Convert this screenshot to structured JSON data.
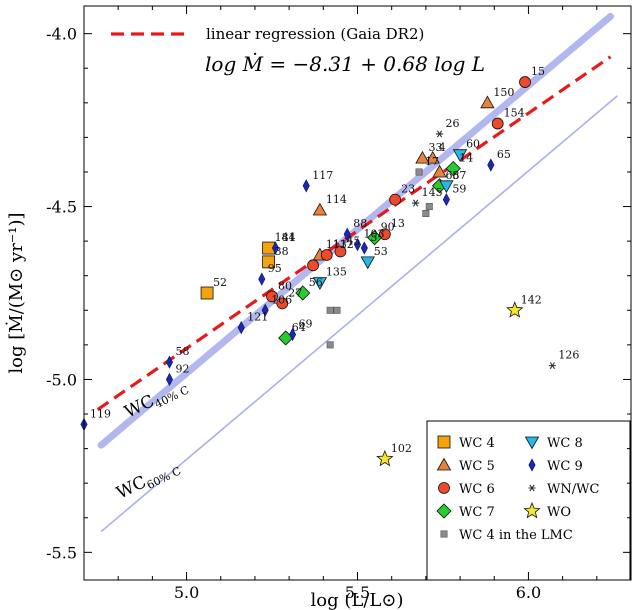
{
  "chart_data": {
    "type": "scatter",
    "xlabel": "log (L/L⊙)",
    "ylabel": "log [Ṁ/(M⊙ yr⁻¹)]",
    "xlim": [
      4.7,
      6.3
    ],
    "ylim": [
      -5.58,
      -3.92
    ],
    "xticks": [
      "5.0",
      "5.5",
      "6.0"
    ],
    "yticks": [
      "-4.0",
      "-4.5",
      "-5.0",
      "-5.5"
    ],
    "grid": false,
    "legend_position": "bottom-right",
    "regression": {
      "label": "linear regression (Gaia DR2)",
      "equation": "log Ṁ = −8.31 + 0.68 log L",
      "color": "#e8191b",
      "x": [
        4.74,
        6.24
      ],
      "y": [
        -5.087,
        -4.067
      ]
    },
    "wc40": {
      "label": "WC40% C",
      "color": "#aab0ee",
      "x": [
        4.75,
        6.24
      ],
      "y": [
        -5.19,
        -3.95
      ]
    },
    "wc60": {
      "label": "WC60% C",
      "color": "#aab0ee",
      "x": [
        4.75,
        6.26
      ],
      "y": [
        -5.44,
        -4.18
      ]
    },
    "legend": [
      {
        "label": "WC 4",
        "marker": "square",
        "color": "#f5a20f"
      },
      {
        "label": "WC 8",
        "marker": "tri-down",
        "color": "#25b8e8"
      },
      {
        "label": "WC 5",
        "marker": "tri-up",
        "color": "#e8823a"
      },
      {
        "label": "WC 9",
        "marker": "diamond-thin",
        "color": "#1a2aa8"
      },
      {
        "label": "WC 6",
        "marker": "circle",
        "color": "#ec4a2a"
      },
      {
        "label": "WN/WC",
        "marker": "star-x",
        "color": "#333333"
      },
      {
        "label": "WC 7",
        "marker": "diamond",
        "color": "#27cc2f"
      },
      {
        "label": "WO",
        "marker": "star",
        "color": "#f6e62a"
      },
      {
        "label": "WC 4 in the LMC",
        "marker": "small-square",
        "color": "#8a8a8a"
      }
    ],
    "points": [
      {
        "x": 5.24,
        "y": -4.62,
        "type": "WC 4",
        "label": "144"
      },
      {
        "x": 5.24,
        "y": -4.66,
        "type": "WC 4",
        "label": "38"
      },
      {
        "x": 5.06,
        "y": -4.75,
        "type": "WC 4",
        "label": "52"
      },
      {
        "x": 5.72,
        "y": -4.36,
        "type": "WC 5",
        "label": "4"
      },
      {
        "x": 5.69,
        "y": -4.36,
        "type": "WC 5",
        "label": "33"
      },
      {
        "x": 5.88,
        "y": -4.2,
        "type": "WC 5",
        "label": "150"
      },
      {
        "x": 5.74,
        "y": -4.4,
        "type": "WC 5",
        "label": ""
      },
      {
        "x": 5.39,
        "y": -4.51,
        "type": "WC 5",
        "label": "114"
      },
      {
        "x": 5.39,
        "y": -4.64,
        "type": "WC 5",
        "label": "111"
      },
      {
        "x": 5.99,
        "y": -4.14,
        "type": "WC 6",
        "label": "15"
      },
      {
        "x": 5.91,
        "y": -4.26,
        "type": "WC 6",
        "label": "154"
      },
      {
        "x": 5.61,
        "y": -4.48,
        "type": "WC 6",
        "label": "23"
      },
      {
        "x": 5.58,
        "y": -4.58,
        "type": "WC 6",
        "label": "13"
      },
      {
        "x": 5.45,
        "y": -4.63,
        "type": "WC 6",
        "label": "45"
      },
      {
        "x": 5.41,
        "y": -4.64,
        "type": "WC 6",
        "label": "132"
      },
      {
        "x": 5.37,
        "y": -4.67,
        "type": "WC 6",
        "label": ""
      },
      {
        "x": 5.28,
        "y": -4.78,
        "type": "WC 6",
        "label": "27"
      },
      {
        "x": 5.25,
        "y": -4.76,
        "type": "WC 6",
        "label": "80"
      },
      {
        "x": 5.78,
        "y": -4.39,
        "type": "WC 7",
        "label": "14"
      },
      {
        "x": 5.74,
        "y": -4.44,
        "type": "WC 7",
        "label": "68"
      },
      {
        "x": 5.55,
        "y": -4.59,
        "type": "WC 7",
        "label": "90"
      },
      {
        "x": 5.34,
        "y": -4.75,
        "type": "WC 7",
        "label": "56"
      },
      {
        "x": 5.29,
        "y": -4.88,
        "type": "WC 7",
        "label": "64"
      },
      {
        "x": 5.8,
        "y": -4.35,
        "type": "WC 8",
        "label": "60"
      },
      {
        "x": 5.76,
        "y": -4.44,
        "type": "WC 8",
        "label": "57"
      },
      {
        "x": 5.53,
        "y": -4.66,
        "type": "WC 8",
        "label": "53"
      },
      {
        "x": 5.39,
        "y": -4.72,
        "type": "WC 8",
        "label": "135"
      },
      {
        "x": 5.89,
        "y": -4.38,
        "type": "WC 9",
        "label": "65"
      },
      {
        "x": 5.76,
        "y": -4.48,
        "type": "WC 9",
        "label": "59"
      },
      {
        "x": 5.35,
        "y": -4.44,
        "type": "WC 9",
        "label": "117"
      },
      {
        "x": 5.47,
        "y": -4.58,
        "type": "WC 9",
        "label": "88"
      },
      {
        "x": 5.5,
        "y": -4.61,
        "type": "WC 9",
        "label": "103"
      },
      {
        "x": 5.52,
        "y": -4.62,
        "type": "WC 9",
        "label": "5"
      },
      {
        "x": 5.26,
        "y": -4.62,
        "type": "WC 9",
        "label": "81"
      },
      {
        "x": 5.22,
        "y": -4.71,
        "type": "WC 9",
        "label": "95"
      },
      {
        "x": 5.16,
        "y": -4.85,
        "type": "WC 9",
        "label": "121"
      },
      {
        "x": 5.23,
        "y": -4.8,
        "type": "WC 9",
        "label": "106"
      },
      {
        "x": 5.31,
        "y": -4.87,
        "type": "WC 9",
        "label": "69"
      },
      {
        "x": 4.95,
        "y": -4.95,
        "type": "WC 9",
        "label": "58"
      },
      {
        "x": 4.95,
        "y": -5.0,
        "type": "WC 9",
        "label": "92"
      },
      {
        "x": 4.7,
        "y": -5.13,
        "type": "WC 9",
        "label": "119"
      },
      {
        "x": 5.74,
        "y": -4.29,
        "type": "WN/WC",
        "label": "26"
      },
      {
        "x": 5.67,
        "y": -4.49,
        "type": "WN/WC",
        "label": "145"
      },
      {
        "x": 6.07,
        "y": -4.96,
        "type": "WN/WC",
        "label": "126"
      },
      {
        "x": 5.96,
        "y": -4.8,
        "type": "WO",
        "label": "142"
      },
      {
        "x": 5.58,
        "y": -5.23,
        "type": "WO",
        "label": "102"
      },
      {
        "x": 5.68,
        "y": -4.4,
        "type": "WC 4 in the LMC",
        "label": "17"
      },
      {
        "x": 5.71,
        "y": -4.5,
        "type": "WC 4 in the LMC",
        "label": ""
      },
      {
        "x": 5.7,
        "y": -4.52,
        "type": "WC 4 in the LMC",
        "label": ""
      },
      {
        "x": 5.42,
        "y": -4.8,
        "type": "WC 4 in the LMC",
        "label": ""
      },
      {
        "x": 5.44,
        "y": -4.8,
        "type": "WC 4 in the LMC",
        "label": ""
      },
      {
        "x": 5.42,
        "y": -4.9,
        "type": "WC 4 in the LMC",
        "label": ""
      }
    ]
  }
}
